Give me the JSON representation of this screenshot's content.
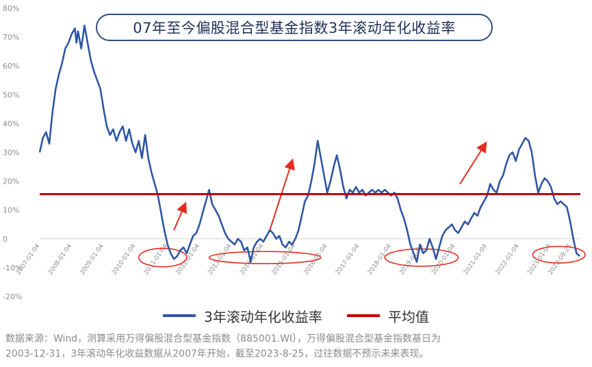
{
  "chart_data": {
    "type": "line",
    "title": "07年至今偏股混合型基金指数3年滚动年化收益率",
    "y_ticks": [
      "80%",
      "70%",
      "60%",
      "50%",
      "40%",
      "30%",
      "20%",
      "10%",
      "0",
      "-10%",
      "-20%"
    ],
    "ylim": [
      -20,
      80
    ],
    "x_tick_labels": [
      "2007-01-04",
      "2008-01-04",
      "2009-01-04",
      "2010-01-04",
      "2011-01-04",
      "2012-01-04",
      "2013-01-04",
      "2014-01-04",
      "2015-01-04",
      "2016-01-04",
      "2017-01-04",
      "2018-01-04",
      "2019-01-04",
      "2020-01-04",
      "2021-01-04",
      "2022-01-04",
      "2023-01-04",
      "2023-08-25"
    ],
    "grid": false,
    "legend_position": "bottom",
    "series": [
      {
        "name": "3年滚动年化收益率",
        "color": "#2e55a4",
        "points": [
          [
            2007.0,
            30
          ],
          [
            2007.1,
            35
          ],
          [
            2007.2,
            37
          ],
          [
            2007.3,
            33
          ],
          [
            2007.4,
            44
          ],
          [
            2007.5,
            52
          ],
          [
            2007.6,
            57
          ],
          [
            2007.7,
            61
          ],
          [
            2007.8,
            66
          ],
          [
            2007.9,
            68
          ],
          [
            2008.0,
            71
          ],
          [
            2008.1,
            73
          ],
          [
            2008.15,
            68
          ],
          [
            2008.2,
            72
          ],
          [
            2008.3,
            66
          ],
          [
            2008.4,
            74
          ],
          [
            2008.5,
            68
          ],
          [
            2008.6,
            62
          ],
          [
            2008.7,
            58
          ],
          [
            2008.8,
            55
          ],
          [
            2008.9,
            52
          ],
          [
            2009.0,
            45
          ],
          [
            2009.1,
            39
          ],
          [
            2009.2,
            36
          ],
          [
            2009.3,
            38
          ],
          [
            2009.4,
            34
          ],
          [
            2009.5,
            37
          ],
          [
            2009.6,
            39
          ],
          [
            2009.7,
            34
          ],
          [
            2009.8,
            38
          ],
          [
            2009.9,
            33
          ],
          [
            2010.0,
            30
          ],
          [
            2010.1,
            34
          ],
          [
            2010.2,
            28
          ],
          [
            2010.3,
            36
          ],
          [
            2010.4,
            28
          ],
          [
            2010.5,
            23
          ],
          [
            2010.6,
            19
          ],
          [
            2010.7,
            15
          ],
          [
            2010.8,
            9
          ],
          [
            2010.9,
            3
          ],
          [
            2011.0,
            -2
          ],
          [
            2011.1,
            -5
          ],
          [
            2011.2,
            -7
          ],
          [
            2011.3,
            -6
          ],
          [
            2011.4,
            -4
          ],
          [
            2011.5,
            -3
          ],
          [
            2011.6,
            -5
          ],
          [
            2011.7,
            -2
          ],
          [
            2011.8,
            1
          ],
          [
            2011.9,
            2
          ],
          [
            2012.0,
            5
          ],
          [
            2012.1,
            9
          ],
          [
            2012.2,
            13
          ],
          [
            2012.3,
            17
          ],
          [
            2012.4,
            12
          ],
          [
            2012.5,
            10
          ],
          [
            2012.6,
            8
          ],
          [
            2012.7,
            5
          ],
          [
            2012.8,
            2
          ],
          [
            2012.9,
            0
          ],
          [
            2013.0,
            -1
          ],
          [
            2013.1,
            -2
          ],
          [
            2013.2,
            0
          ],
          [
            2013.3,
            -1
          ],
          [
            2013.4,
            -4
          ],
          [
            2013.5,
            -3
          ],
          [
            2013.6,
            -8
          ],
          [
            2013.7,
            -3
          ],
          [
            2013.8,
            -1
          ],
          [
            2013.9,
            0
          ],
          [
            2014.0,
            -1
          ],
          [
            2014.1,
            1
          ],
          [
            2014.2,
            3
          ],
          [
            2014.3,
            2
          ],
          [
            2014.4,
            0
          ],
          [
            2014.5,
            1
          ],
          [
            2014.6,
            -2
          ],
          [
            2014.7,
            -3
          ],
          [
            2014.8,
            -1
          ],
          [
            2014.9,
            -2
          ],
          [
            2015.0,
            0
          ],
          [
            2015.1,
            3
          ],
          [
            2015.2,
            8
          ],
          [
            2015.3,
            13
          ],
          [
            2015.4,
            15
          ],
          [
            2015.5,
            20
          ],
          [
            2015.6,
            26
          ],
          [
            2015.7,
            34
          ],
          [
            2015.8,
            28
          ],
          [
            2015.9,
            22
          ],
          [
            2016.0,
            16
          ],
          [
            2016.1,
            20
          ],
          [
            2016.2,
            25
          ],
          [
            2016.3,
            29
          ],
          [
            2016.4,
            24
          ],
          [
            2016.5,
            18
          ],
          [
            2016.6,
            14
          ],
          [
            2016.7,
            17
          ],
          [
            2016.8,
            16
          ],
          [
            2016.9,
            18
          ],
          [
            2017.0,
            16
          ],
          [
            2017.1,
            17
          ],
          [
            2017.2,
            15
          ],
          [
            2017.3,
            16
          ],
          [
            2017.4,
            17
          ],
          [
            2017.5,
            16
          ],
          [
            2017.6,
            17
          ],
          [
            2017.7,
            16
          ],
          [
            2017.8,
            17
          ],
          [
            2017.9,
            16
          ],
          [
            2018.0,
            15
          ],
          [
            2018.1,
            16
          ],
          [
            2018.2,
            14
          ],
          [
            2018.3,
            10
          ],
          [
            2018.4,
            7
          ],
          [
            2018.5,
            3
          ],
          [
            2018.6,
            -2
          ],
          [
            2018.7,
            -5
          ],
          [
            2018.8,
            -8
          ],
          [
            2018.9,
            -2
          ],
          [
            2019.0,
            -5
          ],
          [
            2019.1,
            -4
          ],
          [
            2019.2,
            0
          ],
          [
            2019.3,
            -3
          ],
          [
            2019.4,
            -7
          ],
          [
            2019.5,
            -3
          ],
          [
            2019.6,
            1
          ],
          [
            2019.7,
            3
          ],
          [
            2019.8,
            4
          ],
          [
            2019.9,
            5
          ],
          [
            2020.0,
            3
          ],
          [
            2020.1,
            2
          ],
          [
            2020.2,
            4
          ],
          [
            2020.3,
            6
          ],
          [
            2020.4,
            5
          ],
          [
            2020.5,
            7
          ],
          [
            2020.6,
            9
          ],
          [
            2020.7,
            8
          ],
          [
            2020.8,
            11
          ],
          [
            2020.9,
            13
          ],
          [
            2021.0,
            15
          ],
          [
            2021.1,
            19
          ],
          [
            2021.2,
            17
          ],
          [
            2021.3,
            16
          ],
          [
            2021.4,
            20
          ],
          [
            2021.5,
            22
          ],
          [
            2021.6,
            26
          ],
          [
            2021.7,
            29
          ],
          [
            2021.8,
            30
          ],
          [
            2021.9,
            27
          ],
          [
            2022.0,
            31
          ],
          [
            2022.1,
            33
          ],
          [
            2022.2,
            35
          ],
          [
            2022.3,
            34
          ],
          [
            2022.4,
            30
          ],
          [
            2022.5,
            22
          ],
          [
            2022.6,
            16
          ],
          [
            2022.7,
            19
          ],
          [
            2022.8,
            21
          ],
          [
            2022.9,
            20
          ],
          [
            2023.0,
            18
          ],
          [
            2023.1,
            14
          ],
          [
            2023.2,
            12
          ],
          [
            2023.3,
            13
          ],
          [
            2023.4,
            12
          ],
          [
            2023.5,
            11
          ],
          [
            2023.6,
            6
          ],
          [
            2023.7,
            0
          ],
          [
            2023.8,
            -5
          ],
          [
            2023.9,
            -6
          ]
        ]
      },
      {
        "name": "平均值",
        "color": "#c00000",
        "y": 15.5
      }
    ],
    "annotations": {
      "ellipse_color": "#e52b1f",
      "arrow_color": "#e52b1f",
      "ellipses": [
        {
          "x_center": 2010.85,
          "y_center": -6.5,
          "x_radius": 0.75,
          "y_radius": 3.2
        },
        {
          "x_center": 2014.05,
          "y_center": -6.5,
          "x_radius": 1.75,
          "y_radius": 2.1
        },
        {
          "x_center": 2018.95,
          "y_center": -6.5,
          "x_radius": 1.15,
          "y_radius": 3.0
        },
        {
          "x_center": 2023.25,
          "y_center": -5.5,
          "x_radius": 0.82,
          "y_radius": 2.9
        }
      ],
      "arrows": [
        {
          "from": [
            2011.2,
            3
          ],
          "to": [
            2011.55,
            12
          ]
        },
        {
          "from": [
            2014.2,
            3
          ],
          "to": [
            2014.9,
            27
          ]
        },
        {
          "from": [
            2020.15,
            19
          ],
          "to": [
            2020.95,
            33
          ]
        }
      ]
    }
  },
  "legend": {
    "series1_label": "3年滚动年化收益率",
    "series1_color": "#2e55a4",
    "series2_label": "平均值",
    "series2_color": "#c00000"
  },
  "footnote": {
    "line1": "数据来源：Wind，测算采用万得偏股混合型基金指数（885001.WI），万得偏股混合型基金指数基日为",
    "line2": "2003-12-31，3年滚动年化收益数据从2007年开始，截至2023-8-25，过往数据不预示未来表现。"
  }
}
